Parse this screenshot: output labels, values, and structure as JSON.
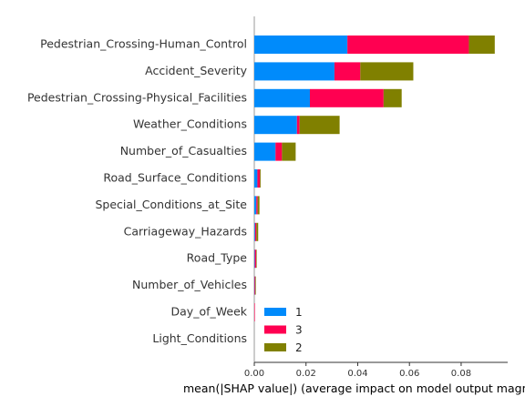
{
  "chart_data": {
    "type": "bar",
    "orientation": "horizontal",
    "stacked": true,
    "categories": [
      "Pedestrian_Crossing-Human_Control",
      "Accident_Severity",
      "Pedestrian_Crossing-Physical_Facilities",
      "Weather_Conditions",
      "Number_of_Casualties",
      "Road_Surface_Conditions",
      "Special_Conditions_at_Site",
      "Carriageway_Hazards",
      "Road_Type",
      "Number_of_Vehicles",
      "Day_of_Week",
      "Light_Conditions"
    ],
    "series": [
      {
        "name": "1",
        "color": "#008bfb",
        "values": [
          0.036,
          0.031,
          0.0215,
          0.0165,
          0.0082,
          0.0012,
          0.0008,
          0.0003,
          0.0002,
          0.0001,
          0.0,
          0.0
        ]
      },
      {
        "name": "3",
        "color": "#ff0051",
        "values": [
          0.047,
          0.01,
          0.0285,
          0.001,
          0.0025,
          0.001,
          0.0005,
          0.0005,
          0.0005,
          0.0003,
          0.0001,
          0.0
        ]
      },
      {
        "name": "2",
        "color": "#808000",
        "values": [
          0.01,
          0.0205,
          0.007,
          0.0155,
          0.0053,
          0.0003,
          0.0007,
          0.0007,
          0.0002,
          0.0001,
          0.0,
          0.0
        ]
      }
    ],
    "xlabel": "mean(|SHAP value|) (average impact on model output magnitude)",
    "xlim": [
      0,
      0.098
    ],
    "xticks": [
      "0.00",
      "0.02",
      "0.04",
      "0.06",
      "0.08"
    ],
    "xtick_values": [
      0,
      0.02,
      0.04,
      0.06,
      0.08
    ],
    "legend": {
      "entries": [
        "1",
        "3",
        "2"
      ],
      "placement": "lower-left-inside"
    },
    "grid": false
  }
}
